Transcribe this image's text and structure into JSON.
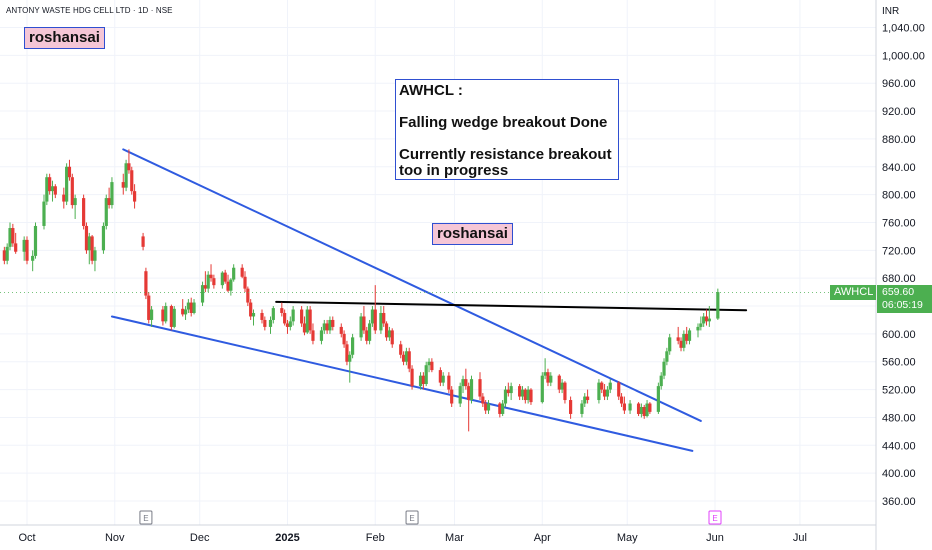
{
  "title": "ANTONY WASTE HDG CELL LTD · 1D · NSE",
  "currency": "INR",
  "watermark_tags": [
    "roshansai",
    "roshansai"
  ],
  "annotation": {
    "lines": [
      "AWHCL :",
      "",
      "Falling wedge breakout Done",
      "",
      "Currently resistance breakout",
      "too in progress"
    ]
  },
  "price_label": {
    "symbol": "AWHCL",
    "price": "659.60",
    "countdown": "06:05:19"
  },
  "event_markers": [
    "E",
    "E",
    "E"
  ],
  "colors": {
    "up": "#4caf50",
    "down": "#e53935",
    "trendline": "#2f5be0",
    "resistance": "#000000",
    "axis_text": "#131722",
    "grid": "#f0f3fa",
    "tag_bg": "#f5c6d6",
    "tag_border": "#2f4fd1"
  },
  "chart_data": {
    "type": "candlestick",
    "title": "ANTONY WASTE HDG CELL LTD · 1D · NSE",
    "y_axis": {
      "unit": "INR",
      "min": 320,
      "max": 1060,
      "ticks": [
        360,
        400,
        440,
        480,
        520,
        560,
        600,
        640,
        680,
        720,
        760,
        800,
        840,
        880,
        920,
        960,
        1000,
        1040
      ],
      "tick_labels": [
        "360.00",
        "400.00",
        "440.00",
        "480.00",
        "520.00",
        "560.00",
        "600.00",
        "640.00",
        "680.00",
        "720.00",
        "760.00",
        "800.00",
        "840.00",
        "880.00",
        "920.00",
        "960.00",
        "1,000.00",
        "1,040.00"
      ]
    },
    "x_axis": {
      "start": "2024-09-18",
      "end": "2025-07-20",
      "ticks": [
        {
          "label": "Oct",
          "date": "2024-10-01"
        },
        {
          "label": "Nov",
          "date": "2024-11-01"
        },
        {
          "label": "Dec",
          "date": "2024-12-01"
        },
        {
          "label": "2025",
          "date": "2025-01-01",
          "bold": true
        },
        {
          "label": "Feb",
          "date": "2025-02-01"
        },
        {
          "label": "Mar",
          "date": "2025-03-01"
        },
        {
          "label": "Apr",
          "date": "2025-04-01"
        },
        {
          "label": "May",
          "date": "2025-05-01"
        },
        {
          "label": "Jun",
          "date": "2025-06-01"
        },
        {
          "label": "Jul",
          "date": "2025-07-01"
        }
      ]
    },
    "last_price": 659.6,
    "candles": [
      [
        "2024-09-18",
        700,
        712,
        690,
        705
      ],
      [
        "2024-09-19",
        705,
        735,
        700,
        728
      ],
      [
        "2024-09-20",
        728,
        740,
        715,
        720
      ],
      [
        "2024-09-23",
        720,
        725,
        700,
        705
      ],
      [
        "2024-09-24",
        705,
        730,
        700,
        725
      ],
      [
        "2024-09-25",
        725,
        760,
        720,
        752
      ],
      [
        "2024-09-26",
        752,
        758,
        725,
        730
      ],
      [
        "2024-09-27",
        730,
        745,
        715,
        718
      ],
      [
        "2024-09-30",
        718,
        740,
        705,
        735
      ],
      [
        "2024-10-01",
        735,
        740,
        700,
        705
      ],
      [
        "2024-10-03",
        705,
        720,
        690,
        712
      ],
      [
        "2024-10-04",
        712,
        760,
        708,
        755
      ],
      [
        "2024-10-07",
        755,
        800,
        750,
        790
      ],
      [
        "2024-10-08",
        790,
        830,
        785,
        825
      ],
      [
        "2024-10-09",
        825,
        830,
        800,
        805
      ],
      [
        "2024-10-10",
        805,
        820,
        790,
        812
      ],
      [
        "2024-10-11",
        812,
        815,
        795,
        800
      ],
      [
        "2024-10-14",
        800,
        810,
        780,
        790
      ],
      [
        "2024-10-15",
        790,
        845,
        785,
        840
      ],
      [
        "2024-10-16",
        840,
        850,
        820,
        825
      ],
      [
        "2024-10-17",
        825,
        830,
        780,
        785
      ],
      [
        "2024-10-18",
        785,
        800,
        765,
        795
      ],
      [
        "2024-10-21",
        795,
        800,
        750,
        755
      ],
      [
        "2024-10-22",
        755,
        760,
        715,
        720
      ],
      [
        "2024-10-23",
        720,
        745,
        700,
        740
      ],
      [
        "2024-10-24",
        740,
        742,
        700,
        705
      ],
      [
        "2024-10-25",
        705,
        725,
        690,
        720
      ],
      [
        "2024-10-28",
        720,
        760,
        715,
        755
      ],
      [
        "2024-10-29",
        755,
        800,
        750,
        795
      ],
      [
        "2024-10-30",
        795,
        810,
        780,
        785
      ],
      [
        "2024-10-31",
        785,
        825,
        780,
        818
      ],
      [
        "2024-11-04",
        818,
        830,
        800,
        810
      ],
      [
        "2024-11-05",
        810,
        850,
        805,
        845
      ],
      [
        "2024-11-06",
        845,
        865,
        830,
        835
      ],
      [
        "2024-11-07",
        835,
        840,
        800,
        805
      ],
      [
        "2024-11-08",
        805,
        815,
        780,
        790
      ],
      [
        "2024-11-11",
        740,
        745,
        720,
        725
      ],
      [
        "2024-11-12",
        690,
        695,
        650,
        655
      ],
      [
        "2024-11-13",
        655,
        660,
        615,
        620
      ],
      [
        "2024-11-14",
        620,
        640,
        610,
        635
      ],
      [
        "2024-11-18",
        635,
        640,
        612,
        618
      ],
      [
        "2024-11-19",
        618,
        645,
        615,
        640
      ],
      [
        "2024-11-21",
        640,
        642,
        605,
        610
      ],
      [
        "2024-11-22",
        610,
        640,
        608,
        636
      ],
      [
        "2024-11-25",
        636,
        650,
        625,
        628
      ],
      [
        "2024-11-26",
        628,
        640,
        620,
        635
      ],
      [
        "2024-11-27",
        635,
        650,
        630,
        645
      ],
      [
        "2024-11-28",
        645,
        652,
        625,
        630
      ],
      [
        "2024-11-29",
        630,
        650,
        628,
        645
      ],
      [
        "2024-12-02",
        645,
        675,
        640,
        670
      ],
      [
        "2024-12-03",
        670,
        690,
        660,
        665
      ],
      [
        "2024-12-04",
        665,
        690,
        660,
        685
      ],
      [
        "2024-12-05",
        685,
        700,
        675,
        680
      ],
      [
        "2024-12-06",
        680,
        685,
        665,
        670
      ],
      [
        "2024-12-09",
        670,
        690,
        665,
        688
      ],
      [
        "2024-12-10",
        688,
        692,
        672,
        675
      ],
      [
        "2024-12-11",
        675,
        685,
        660,
        662
      ],
      [
        "2024-12-12",
        662,
        680,
        655,
        678
      ],
      [
        "2024-12-13",
        678,
        700,
        675,
        695
      ],
      [
        "2024-12-16",
        695,
        700,
        680,
        682
      ],
      [
        "2024-12-17",
        682,
        690,
        660,
        665
      ],
      [
        "2024-12-18",
        665,
        668,
        640,
        645
      ],
      [
        "2024-12-19",
        645,
        650,
        620,
        625
      ],
      [
        "2024-12-20",
        625,
        635,
        612,
        630
      ],
      [
        "2024-12-23",
        630,
        635,
        615,
        620
      ],
      [
        "2024-12-24",
        620,
        625,
        605,
        610
      ],
      [
        "2024-12-26",
        610,
        625,
        600,
        620
      ],
      [
        "2024-12-27",
        620,
        640,
        615,
        637
      ],
      [
        "2024-12-30",
        637,
        645,
        625,
        630
      ],
      [
        "2024-12-31",
        630,
        635,
        612,
        615
      ],
      [
        "2025-01-01",
        615,
        620,
        600,
        610
      ],
      [
        "2025-01-02",
        610,
        625,
        605,
        618
      ],
      [
        "2025-01-03",
        618,
        640,
        612,
        635
      ],
      [
        "2025-01-06",
        635,
        640,
        610,
        615
      ],
      [
        "2025-01-07",
        615,
        625,
        598,
        602
      ],
      [
        "2025-01-08",
        602,
        640,
        600,
        635
      ],
      [
        "2025-01-09",
        635,
        640,
        600,
        605
      ],
      [
        "2025-01-10",
        605,
        615,
        585,
        590
      ],
      [
        "2025-01-13",
        590,
        610,
        585,
        605
      ],
      [
        "2025-01-14",
        605,
        620,
        600,
        615
      ],
      [
        "2025-01-15",
        615,
        620,
        600,
        605
      ],
      [
        "2025-01-16",
        605,
        625,
        600,
        620
      ],
      [
        "2025-01-17",
        620,
        625,
        605,
        610
      ],
      [
        "2025-01-20",
        610,
        615,
        595,
        600
      ],
      [
        "2025-01-21",
        600,
        605,
        580,
        585
      ],
      [
        "2025-01-22",
        585,
        590,
        555,
        560
      ],
      [
        "2025-01-23",
        560,
        575,
        530,
        570
      ],
      [
        "2025-01-24",
        570,
        600,
        565,
        595
      ],
      [
        "2025-01-27",
        595,
        630,
        590,
        625
      ],
      [
        "2025-01-28",
        625,
        640,
        600,
        605
      ],
      [
        "2025-01-29",
        605,
        610,
        585,
        590
      ],
      [
        "2025-01-30",
        590,
        620,
        585,
        615
      ],
      [
        "2025-01-31",
        615,
        640,
        610,
        635
      ],
      [
        "2025-02-01",
        635,
        670,
        600,
        605
      ],
      [
        "2025-02-03",
        605,
        640,
        600,
        630
      ],
      [
        "2025-02-04",
        630,
        640,
        610,
        615
      ],
      [
        "2025-02-05",
        615,
        618,
        590,
        595
      ],
      [
        "2025-02-06",
        595,
        610,
        590,
        605
      ],
      [
        "2025-02-07",
        605,
        608,
        580,
        585
      ],
      [
        "2025-02-10",
        585,
        590,
        565,
        570
      ],
      [
        "2025-02-11",
        570,
        575,
        555,
        560
      ],
      [
        "2025-02-12",
        560,
        580,
        555,
        575
      ],
      [
        "2025-02-13",
        575,
        580,
        545,
        550
      ],
      [
        "2025-02-14",
        550,
        555,
        520,
        525
      ],
      [
        "2025-02-17",
        525,
        545,
        520,
        540
      ],
      [
        "2025-02-18",
        540,
        545,
        520,
        528
      ],
      [
        "2025-02-19",
        528,
        560,
        525,
        555
      ],
      [
        "2025-02-20",
        555,
        565,
        545,
        560
      ],
      [
        "2025-02-21",
        560,
        565,
        545,
        548
      ],
      [
        "2025-02-24",
        548,
        552,
        525,
        530
      ],
      [
        "2025-02-25",
        530,
        545,
        525,
        540
      ],
      [
        "2025-02-27",
        540,
        545,
        515,
        520
      ],
      [
        "2025-02-28",
        520,
        525,
        495,
        500
      ],
      [
        "2025-03-03",
        500,
        530,
        495,
        525
      ],
      [
        "2025-03-04",
        525,
        540,
        515,
        535
      ],
      [
        "2025-03-05",
        535,
        550,
        520,
        525
      ],
      [
        "2025-03-06",
        525,
        530,
        460,
        505
      ],
      [
        "2025-03-07",
        505,
        540,
        500,
        535
      ],
      [
        "2025-03-10",
        535,
        545,
        505,
        510
      ],
      [
        "2025-03-11",
        510,
        515,
        495,
        500
      ],
      [
        "2025-03-12",
        500,
        505,
        485,
        490
      ],
      [
        "2025-03-13",
        490,
        505,
        485,
        500
      ],
      [
        "2025-03-17",
        500,
        502,
        480,
        485
      ],
      [
        "2025-03-18",
        485,
        505,
        482,
        500
      ],
      [
        "2025-03-19",
        500,
        525,
        495,
        520
      ],
      [
        "2025-03-20",
        520,
        530,
        510,
        515
      ],
      [
        "2025-03-21",
        515,
        530,
        505,
        525
      ],
      [
        "2025-03-24",
        525,
        528,
        505,
        510
      ],
      [
        "2025-03-25",
        510,
        525,
        505,
        520
      ],
      [
        "2025-03-26",
        520,
        522,
        500,
        505
      ],
      [
        "2025-03-27",
        505,
        525,
        500,
        520
      ],
      [
        "2025-03-28",
        520,
        522,
        498,
        502
      ],
      [
        "2025-04-01",
        502,
        545,
        500,
        540
      ],
      [
        "2025-04-02",
        540,
        565,
        535,
        545
      ],
      [
        "2025-04-03",
        545,
        550,
        525,
        530
      ],
      [
        "2025-04-04",
        530,
        545,
        525,
        540
      ],
      [
        "2025-04-07",
        540,
        542,
        515,
        520
      ],
      [
        "2025-04-08",
        520,
        535,
        515,
        530
      ],
      [
        "2025-04-09",
        530,
        532,
        500,
        505
      ],
      [
        "2025-04-11",
        505,
        510,
        478,
        485
      ],
      [
        "2025-04-15",
        485,
        505,
        480,
        500
      ],
      [
        "2025-04-16",
        500,
        515,
        495,
        510
      ],
      [
        "2025-04-17",
        510,
        520,
        500,
        505
      ],
      [
        "2025-04-21",
        505,
        535,
        500,
        530
      ],
      [
        "2025-04-22",
        530,
        532,
        515,
        520
      ],
      [
        "2025-04-23",
        520,
        528,
        505,
        510
      ],
      [
        "2025-04-24",
        510,
        525,
        505,
        520
      ],
      [
        "2025-04-25",
        520,
        535,
        515,
        530
      ],
      [
        "2025-04-28",
        530,
        532,
        505,
        510
      ],
      [
        "2025-04-29",
        510,
        515,
        495,
        500
      ],
      [
        "2025-04-30",
        500,
        510,
        485,
        490
      ],
      [
        "2025-05-02",
        490,
        505,
        485,
        500
      ],
      [
        "2025-05-05",
        500,
        502,
        482,
        485
      ],
      [
        "2025-05-06",
        485,
        500,
        480,
        495
      ],
      [
        "2025-05-07",
        495,
        498,
        478,
        482
      ],
      [
        "2025-05-08",
        482,
        505,
        480,
        500
      ],
      [
        "2025-05-09",
        500,
        502,
        485,
        488
      ],
      [
        "2025-05-12",
        488,
        530,
        485,
        525
      ],
      [
        "2025-05-13",
        525,
        545,
        520,
        540
      ],
      [
        "2025-05-14",
        540,
        565,
        535,
        560
      ],
      [
        "2025-05-15",
        560,
        580,
        555,
        575
      ],
      [
        "2025-05-16",
        575,
        600,
        570,
        595
      ],
      [
        "2025-05-19",
        595,
        610,
        585,
        590
      ],
      [
        "2025-05-20",
        590,
        595,
        575,
        580
      ],
      [
        "2025-05-21",
        580,
        605,
        575,
        600
      ],
      [
        "2025-05-22",
        600,
        610,
        585,
        590
      ],
      [
        "2025-05-23",
        590,
        608,
        585,
        605
      ],
      [
        "2025-05-26",
        605,
        615,
        595,
        610
      ],
      [
        "2025-05-27",
        610,
        625,
        605,
        615
      ],
      [
        "2025-05-28",
        615,
        630,
        610,
        625
      ],
      [
        "2025-05-29",
        625,
        635,
        612,
        618
      ],
      [
        "2025-05-30",
        618,
        640,
        610,
        622
      ],
      [
        "2025-06-02",
        622,
        665,
        620,
        660
      ]
    ],
    "trendlines": [
      {
        "name": "wedge-upper",
        "from": [
          "2024-11-04",
          865
        ],
        "to": [
          "2025-05-27",
          475
        ]
      },
      {
        "name": "wedge-lower",
        "from": [
          "2024-10-31",
          625
        ],
        "to": [
          "2025-05-24",
          432
        ]
      },
      {
        "name": "resistance",
        "from": [
          "2024-12-28",
          646
        ],
        "to": [
          "2025-06-12",
          634
        ]
      }
    ],
    "earnings_markers": [
      "2024-11-12",
      "2025-02-14",
      "2025-06-01"
    ]
  }
}
